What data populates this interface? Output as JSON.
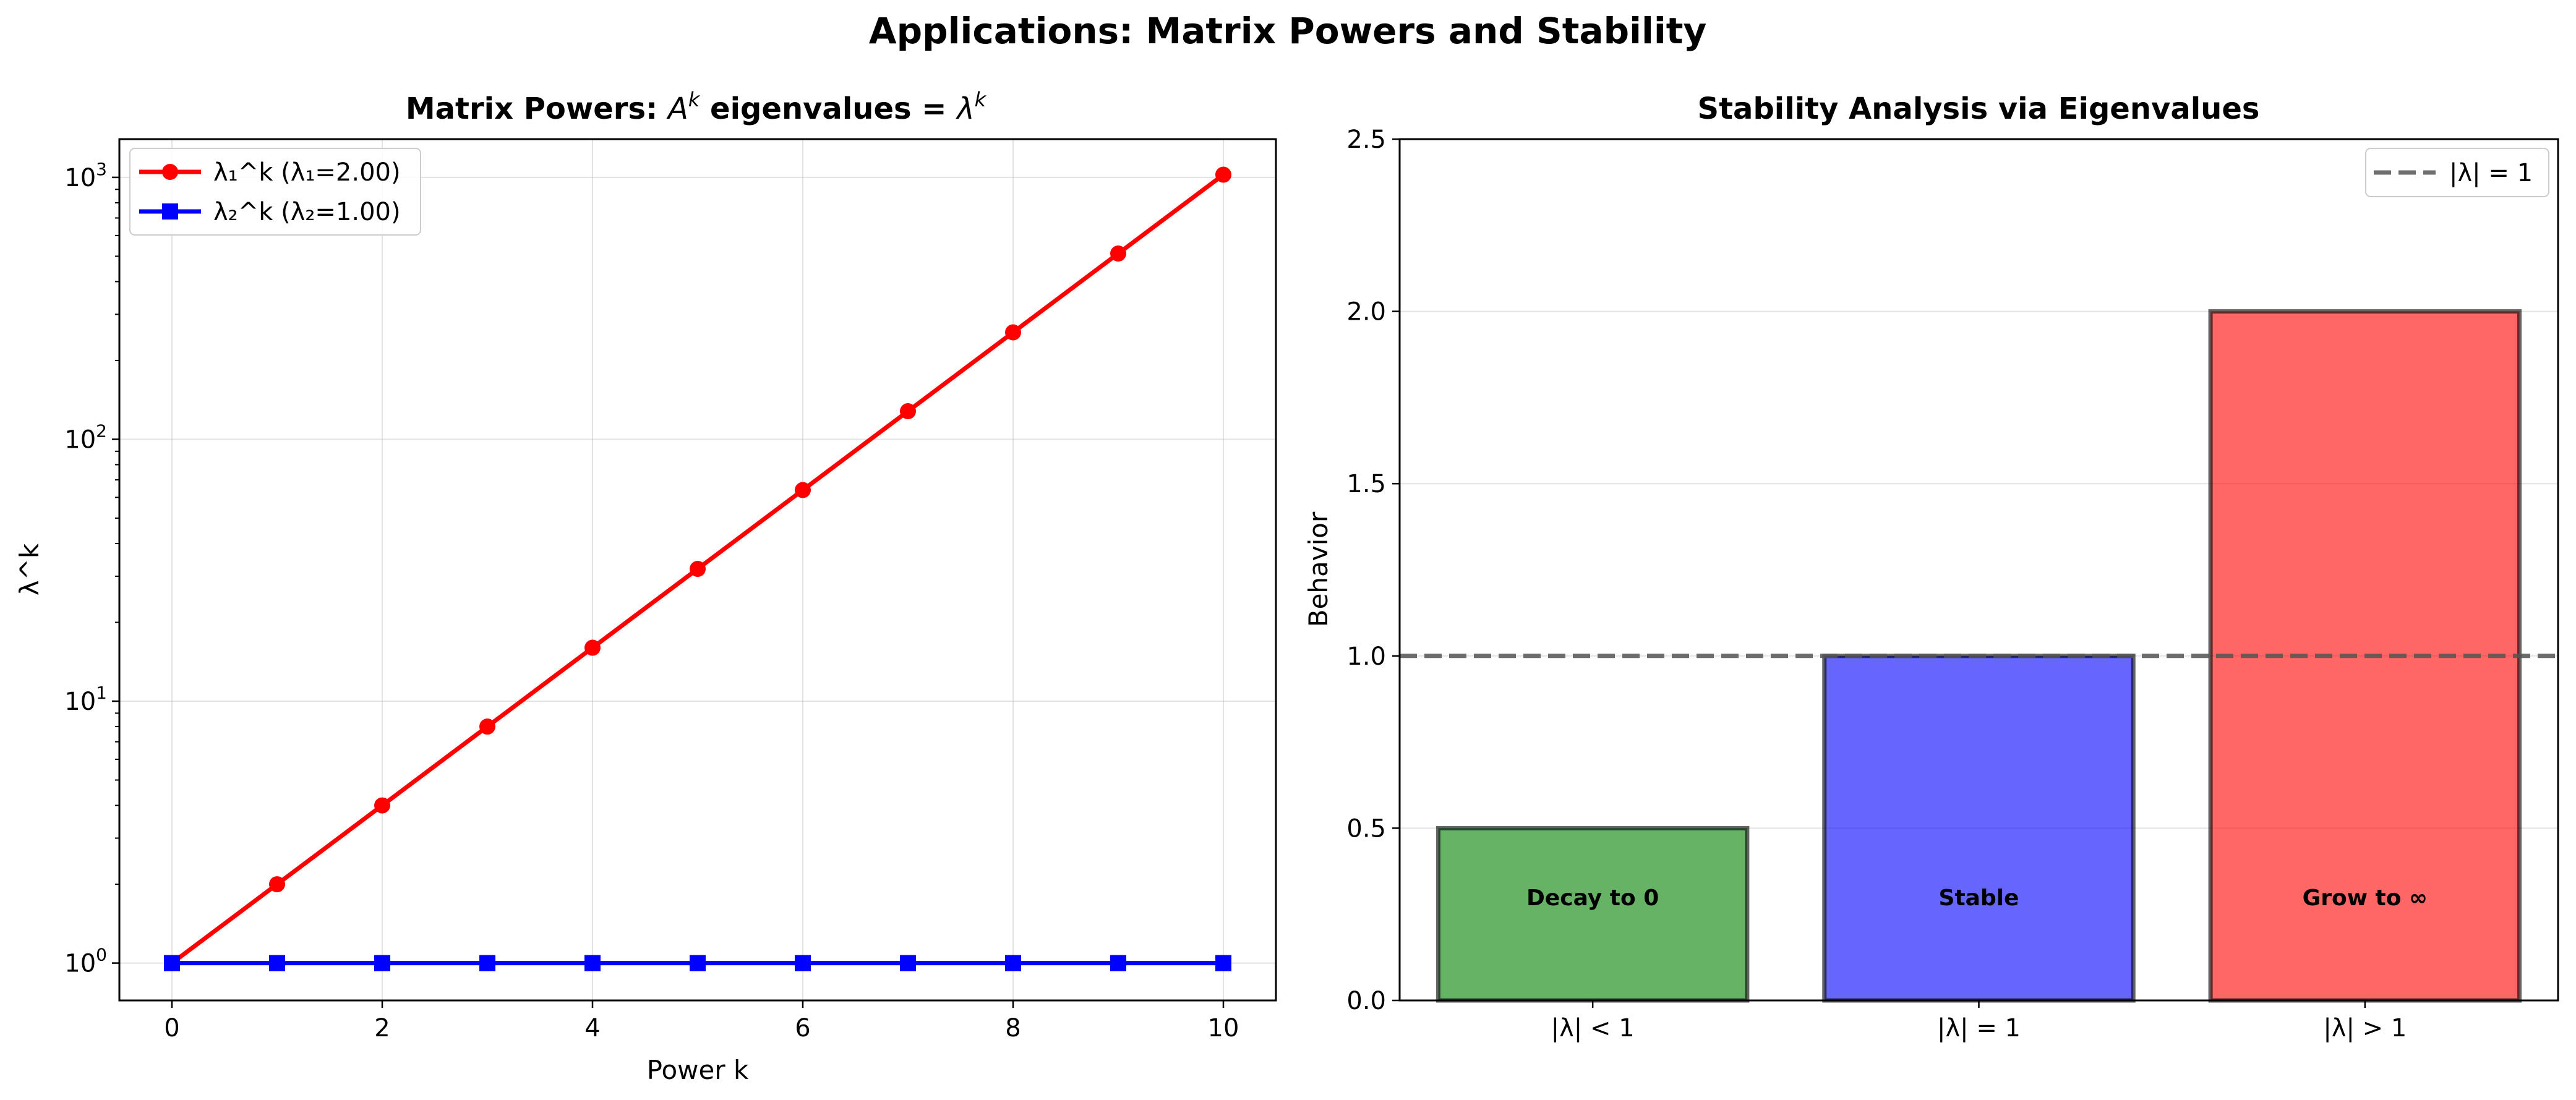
{
  "figure": {
    "suptitle": "Applications: Matrix Powers and Stability"
  },
  "chart_data": [
    {
      "type": "line",
      "title_prefix": "Matrix Powers: ",
      "title_math_1": "A",
      "title_sup_1": "k",
      "title_middle": " eigenvalues = ",
      "title_math_2": "λ",
      "title_sup_2": "k",
      "xlabel": "Power k",
      "ylabel": "λ^k",
      "yscale": "log",
      "xlim": [
        -0.5,
        10.5
      ],
      "ylim": [
        0.72,
        1400
      ],
      "xticks": [
        0,
        2,
        4,
        6,
        8,
        10
      ],
      "xtick_labels": [
        "0",
        "2",
        "4",
        "6",
        "8",
        "10"
      ],
      "yticks": [
        1,
        10,
        100,
        1000
      ],
      "ytick_bases": [
        "10",
        "10",
        "10",
        "10"
      ],
      "ytick_exps": [
        "0",
        "1",
        "2",
        "3"
      ],
      "grid": true,
      "legend_position": "top-left",
      "x": [
        0,
        1,
        2,
        3,
        4,
        5,
        6,
        7,
        8,
        9,
        10
      ],
      "series": [
        {
          "name": "λ₁^k (λ₁=2.00)",
          "color": "#ff0000",
          "marker": "circle",
          "values": [
            1,
            2,
            4,
            8,
            16,
            32,
            64,
            128,
            256,
            512,
            1024
          ]
        },
        {
          "name": "λ₂^k (λ₂=1.00)",
          "color": "#0000ff",
          "marker": "square",
          "values": [
            1,
            1,
            1,
            1,
            1,
            1,
            1,
            1,
            1,
            1,
            1
          ]
        }
      ]
    },
    {
      "type": "bar",
      "title": "Stability Analysis via Eigenvalues",
      "xlabel": "",
      "ylabel": "Behavior",
      "ylim": [
        0,
        2.5
      ],
      "yticks": [
        0,
        0.5,
        1.0,
        1.5,
        2.0,
        2.5
      ],
      "ytick_labels": [
        "0.0",
        "0.5",
        "1.0",
        "1.5",
        "2.0",
        "2.5"
      ],
      "grid": true,
      "legend_position": "top-right",
      "categories": [
        "|λ| < 1",
        "|λ| = 1",
        "|λ| > 1"
      ],
      "values": [
        0.5,
        1.0,
        2.0
      ],
      "colors": [
        "#008000",
        "#0000ff",
        "#ff0000"
      ],
      "bar_labels": [
        "Decay to 0",
        "Stable",
        "Grow to ∞"
      ],
      "bar_label_y": 0.3,
      "reference_line": {
        "y": 1.0,
        "label": "|λ| = 1",
        "color": "#555555",
        "style": "dashed"
      }
    }
  ]
}
